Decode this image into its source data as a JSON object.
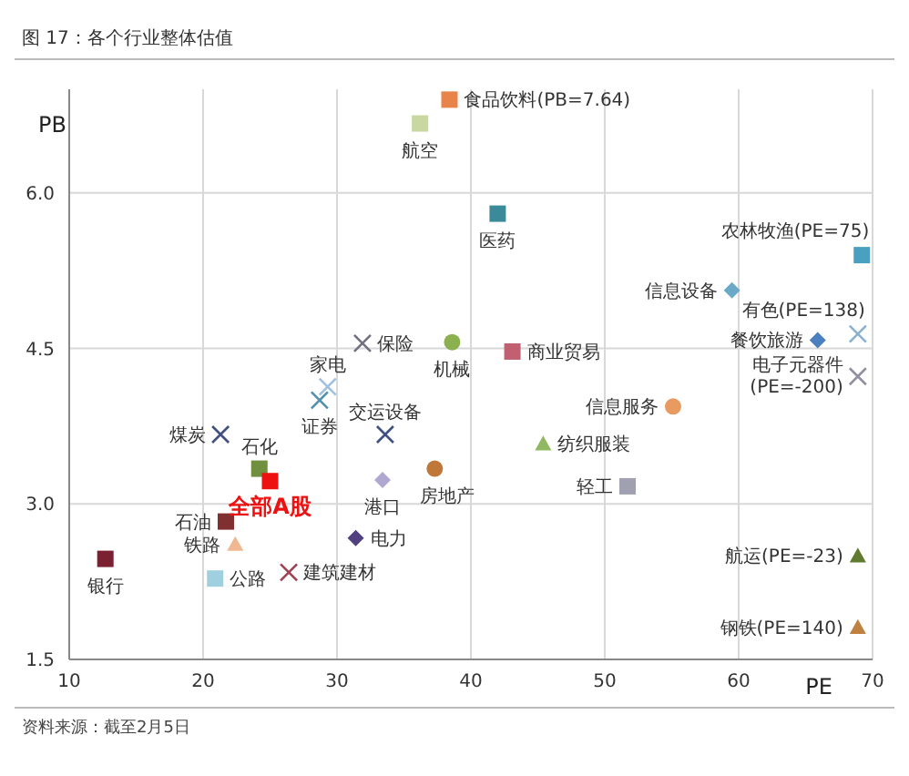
{
  "chart_data": {
    "type": "scatter",
    "title": "图 17：各个行业整体估值",
    "xlabel": "PE",
    "ylabel": "PB",
    "xlim": [
      10,
      70
    ],
    "xticks": [
      10,
      20,
      30,
      40,
      50,
      60,
      70
    ],
    "ylim": [
      1.5,
      7.0
    ],
    "yticks": [
      1.5,
      {
        "value": 3,
        "label": "3.0"
      },
      4.5,
      {
        "value": 6,
        "label": "6.0"
      }
    ],
    "grid": true,
    "legend": false,
    "annotations": [
      "资料来源：截至2月5日"
    ],
    "series": [
      {
        "name": "食品饮料(PB=7.64)",
        "color": "#e8844a",
        "marker": "square",
        "x": [
          38.4
        ],
        "values": [
          6.9
        ]
      },
      {
        "name": "航空",
        "color": "#c8d8a0",
        "marker": "square",
        "x": [
          36.2
        ],
        "values": [
          6.67
        ]
      },
      {
        "name": "医药",
        "color": "#3a8a9a",
        "marker": "square",
        "x": [
          42.0
        ],
        "values": [
          5.8
        ]
      },
      {
        "name": "农林牧渔(PE=75)",
        "color": "#4aa0c0",
        "marker": "square",
        "x": [
          69.2
        ],
        "values": [
          5.4
        ]
      },
      {
        "name": "信息设备",
        "color": "#6aaac8",
        "marker": "diamond",
        "x": [
          59.5
        ],
        "values": [
          5.06
        ]
      },
      {
        "name": "有色(PE=138)",
        "color": "#8ab0d0",
        "marker": "cross",
        "x": [
          68.9
        ],
        "values": [
          4.64
        ]
      },
      {
        "name": "餐饮旅游",
        "color": "#4a80c0",
        "marker": "diamond",
        "x": [
          65.9
        ],
        "values": [
          4.58
        ]
      },
      {
        "name": "保险",
        "color": "#707080",
        "marker": "cross",
        "x": [
          31.9
        ],
        "values": [
          4.55
        ]
      },
      {
        "name": "机械",
        "color": "#8ab050",
        "marker": "circle",
        "x": [
          38.6
        ],
        "values": [
          4.56
        ]
      },
      {
        "name": "商业贸易",
        "color": "#c06070",
        "marker": "square",
        "x": [
          43.1
        ],
        "values": [
          4.47
        ]
      },
      {
        "name": "家电",
        "color": "#a0c0e0",
        "marker": "cross",
        "x": [
          29.3
        ],
        "values": [
          4.13
        ]
      },
      {
        "name": "证券",
        "color": "#5090b0",
        "marker": "cross",
        "x": [
          28.7
        ],
        "values": [
          4.0
        ]
      },
      {
        "name": "电子元器件(PE=-200)",
        "color": "#9090a0",
        "marker": "cross",
        "x": [
          68.9
        ],
        "values": [
          4.23
        ]
      },
      {
        "name": "信息服务",
        "color": "#e89a60",
        "marker": "circle",
        "x": [
          55.1
        ],
        "values": [
          3.94
        ]
      },
      {
        "name": "煤炭",
        "color": "#405080",
        "marker": "cross",
        "x": [
          21.3
        ],
        "values": [
          3.67
        ]
      },
      {
        "name": "交运设备",
        "color": "#405080",
        "marker": "cross",
        "x": [
          33.6
        ],
        "values": [
          3.67
        ]
      },
      {
        "name": "纺织服装",
        "color": "#90b860",
        "marker": "triangle",
        "x": [
          45.4
        ],
        "values": [
          3.58
        ]
      },
      {
        "name": "石化",
        "color": "#709040",
        "marker": "square",
        "x": [
          24.2
        ],
        "values": [
          3.34
        ]
      },
      {
        "name": "全部A股",
        "color": "#ee1111",
        "marker": "square",
        "x": [
          25.0
        ],
        "values": [
          3.22
        ]
      },
      {
        "name": "港口",
        "color": "#b0a8d0",
        "marker": "diamond",
        "x": [
          33.4
        ],
        "values": [
          3.23
        ]
      },
      {
        "name": "房地产",
        "color": "#c07838",
        "marker": "circle",
        "x": [
          37.3
        ],
        "values": [
          3.34
        ]
      },
      {
        "name": "轻工",
        "color": "#a0a0b0",
        "marker": "square",
        "x": [
          51.7
        ],
        "values": [
          3.17
        ]
      },
      {
        "name": "石油",
        "color": "#803030",
        "marker": "square",
        "x": [
          21.7
        ],
        "values": [
          2.83
        ]
      },
      {
        "name": "电力",
        "color": "#504080",
        "marker": "diamond",
        "x": [
          31.4
        ],
        "values": [
          2.67
        ]
      },
      {
        "name": "铁路",
        "color": "#f0b890",
        "marker": "triangle",
        "x": [
          22.4
        ],
        "values": [
          2.61
        ]
      },
      {
        "name": "银行",
        "color": "#7a2030",
        "marker": "square",
        "x": [
          12.7
        ],
        "values": [
          2.47
        ]
      },
      {
        "name": "航运(PE=-23)",
        "color": "#607a30",
        "marker": "triangle",
        "x": [
          68.9
        ],
        "values": [
          2.5
        ]
      },
      {
        "name": "建筑建材",
        "color": "#a04050",
        "marker": "cross",
        "x": [
          26.4
        ],
        "values": [
          2.34
        ]
      },
      {
        "name": "公路",
        "color": "#a0d0e0",
        "marker": "square",
        "x": [
          20.9
        ],
        "values": [
          2.28
        ]
      },
      {
        "name": "钢铁(PE=140)",
        "color": "#c08040",
        "marker": "triangle",
        "x": [
          68.9
        ],
        "values": [
          1.81
        ]
      }
    ]
  }
}
